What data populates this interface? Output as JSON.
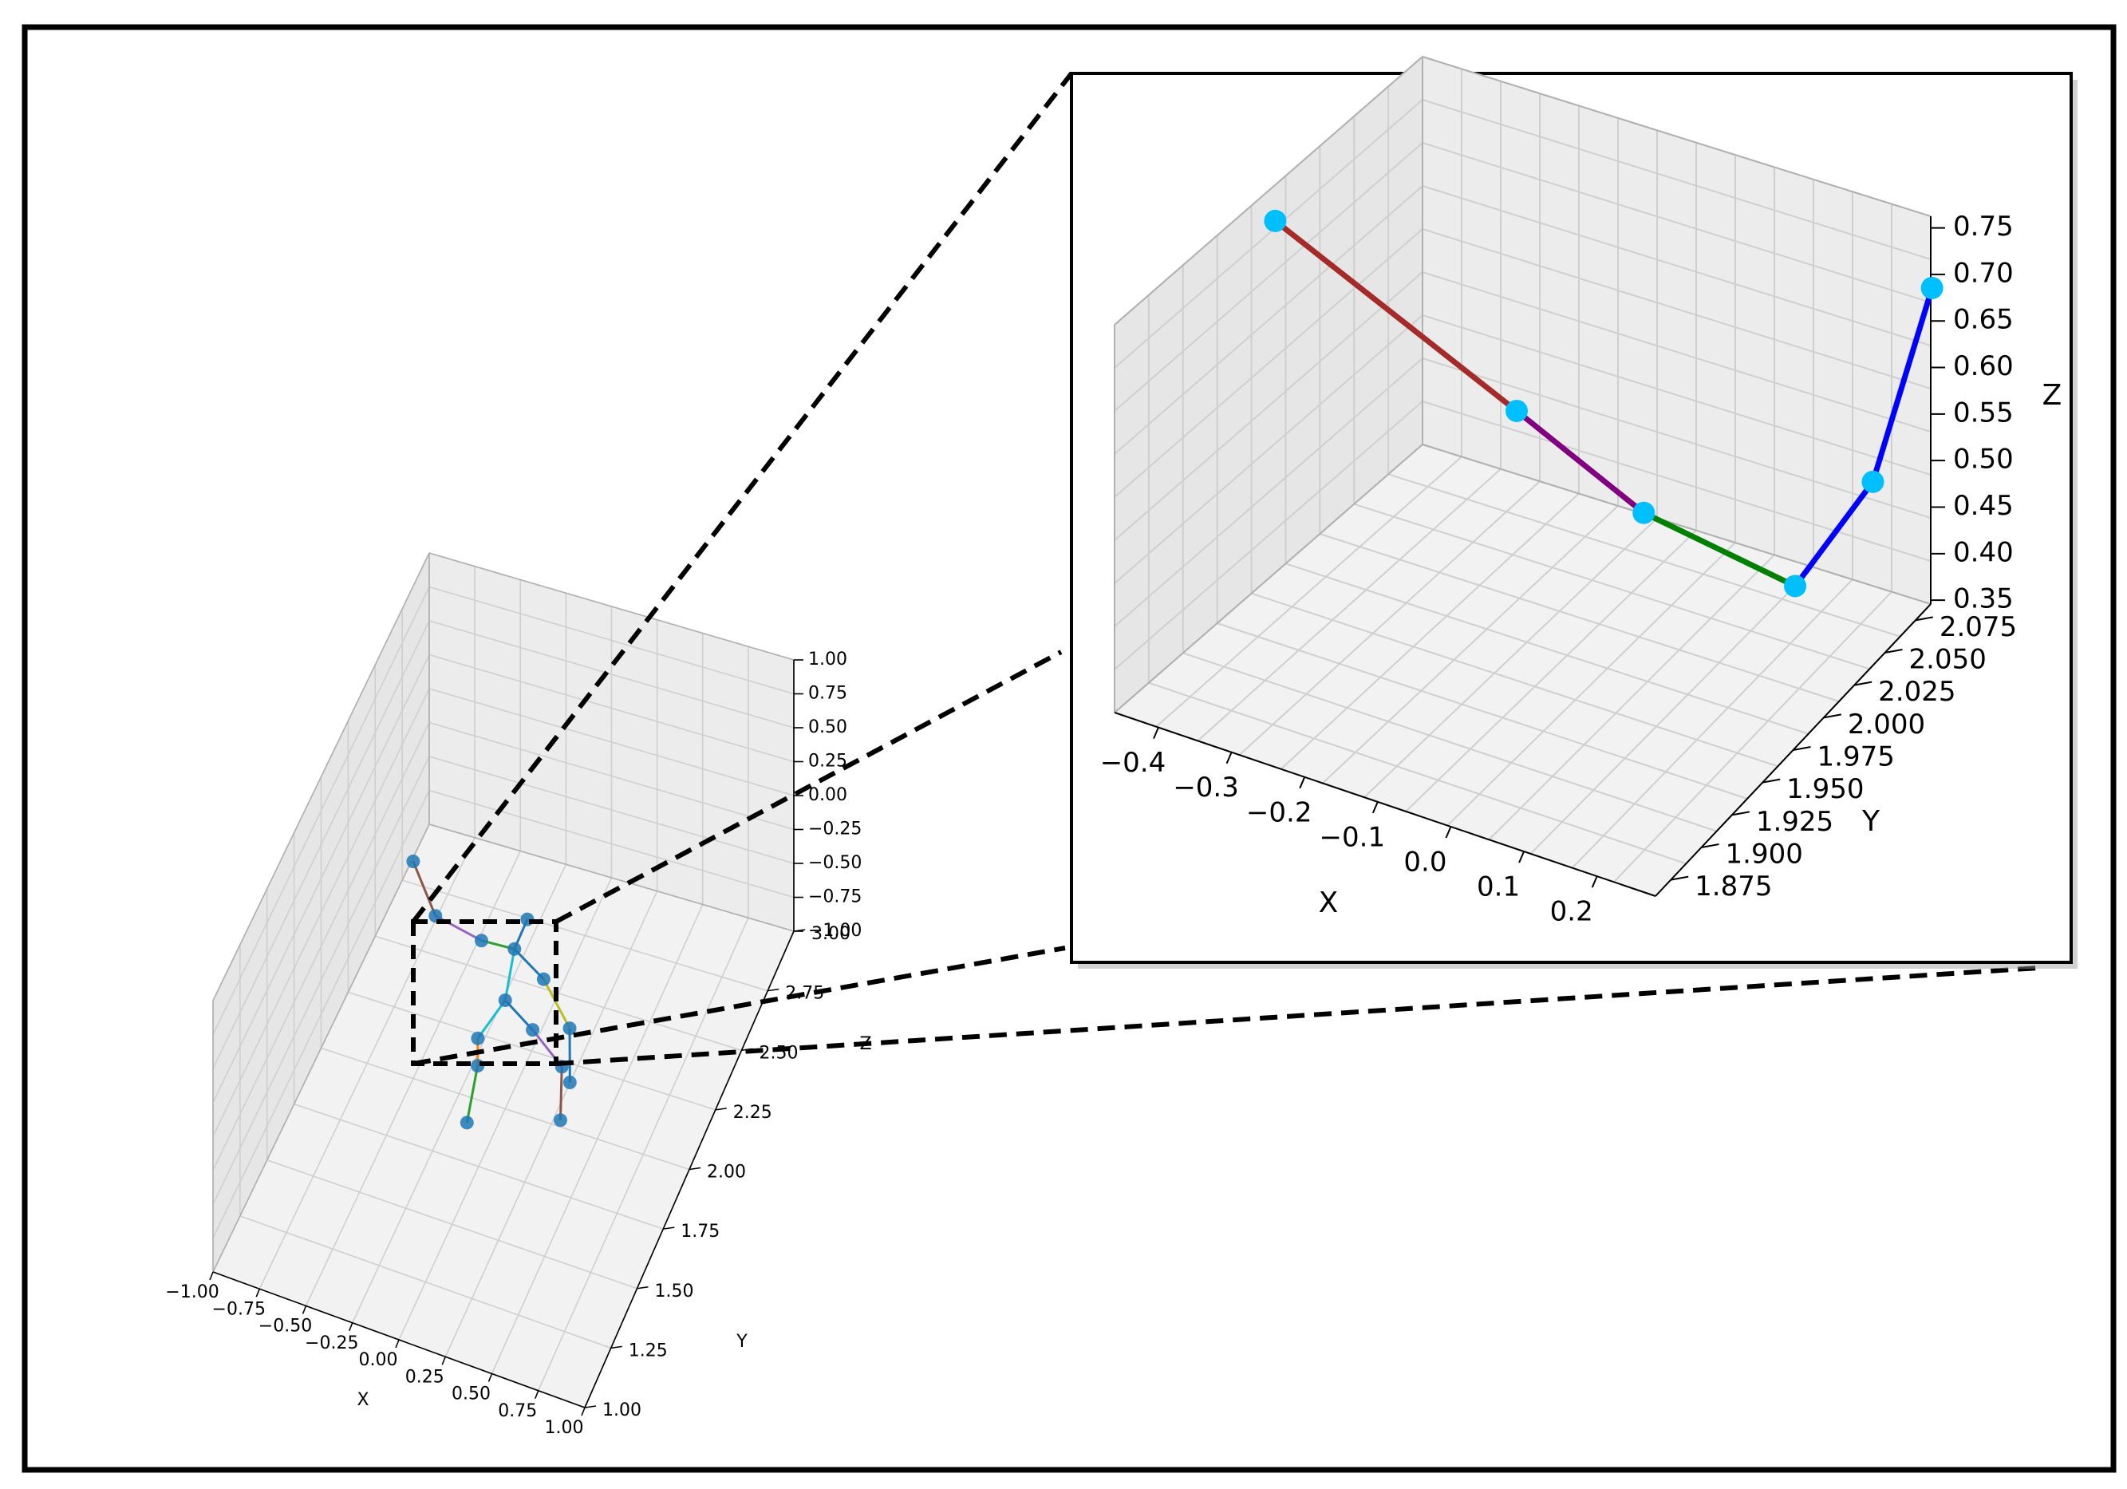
{
  "chart_data": [
    {
      "id": "main",
      "type": "scatter3d",
      "title": "",
      "axes": {
        "x": {
          "label": "X",
          "range": [
            -1.0,
            1.0
          ],
          "ticks": [
            "−1.00",
            "−0.75",
            "−0.50",
            "−0.25",
            "0.00",
            "0.25",
            "0.50",
            "0.75",
            "1.00"
          ]
        },
        "y": {
          "label": "Y",
          "range": [
            1.0,
            3.0
          ],
          "ticks": [
            "1.00",
            "1.25",
            "1.50",
            "1.75",
            "2.00",
            "2.25",
            "2.50",
            "2.75",
            "3.00"
          ]
        },
        "z": {
          "label": "Z",
          "range": [
            -1.0,
            1.0
          ],
          "ticks": [
            "−1.00",
            "−0.75",
            "−0.50",
            "−0.25",
            "0.00",
            "0.25",
            "0.50",
            "0.75",
            "1.00"
          ]
        }
      },
      "grid": true,
      "joints": [
        {
          "x": 0.0,
          "y": 2.0,
          "z": -0.2
        },
        {
          "x": 0.12,
          "y": 2.05,
          "z": -0.45
        },
        {
          "x": 0.25,
          "y": 2.1,
          "z": -0.75
        },
        {
          "x": 0.3,
          "y": 2.0,
          "z": -0.95
        },
        {
          "x": -0.12,
          "y": 1.95,
          "z": -0.45
        },
        {
          "x": -0.15,
          "y": 2.0,
          "z": -0.75
        },
        {
          "x": -0.15,
          "y": 1.9,
          "z": -1.0
        },
        {
          "x": 0.05,
          "y": 2.0,
          "z": 0.2
        },
        {
          "x": 0.12,
          "y": 2.0,
          "z": 0.45
        },
        {
          "x": 0.18,
          "y": 2.05,
          "z": -0.05
        },
        {
          "x": 0.35,
          "y": 2.0,
          "z": -0.25
        },
        {
          "x": 0.38,
          "y": 1.95,
          "z": -0.55
        },
        {
          "x": -0.1,
          "y": 1.95,
          "z": 0.28
        },
        {
          "x": -0.35,
          "y": 1.95,
          "z": 0.35
        },
        {
          "x": -0.5,
          "y": 2.0,
          "z": 0.6
        }
      ],
      "bones": [
        {
          "from": 0,
          "to": 1,
          "color": "#1f77b4"
        },
        {
          "from": 1,
          "to": 2,
          "color": "#9467bd"
        },
        {
          "from": 2,
          "to": 3,
          "color": "#8c564b"
        },
        {
          "from": 0,
          "to": 4,
          "color": "#17becf"
        },
        {
          "from": 4,
          "to": 5,
          "color": "#ff7f0e"
        },
        {
          "from": 5,
          "to": 6,
          "color": "#2ca02c"
        },
        {
          "from": 0,
          "to": 7,
          "color": "#17becf"
        },
        {
          "from": 7,
          "to": 8,
          "color": "#1f77b4"
        },
        {
          "from": 7,
          "to": 9,
          "color": "#1f77b4"
        },
        {
          "from": 9,
          "to": 10,
          "color": "#bcbd22"
        },
        {
          "from": 10,
          "to": 11,
          "color": "#1f77b4"
        },
        {
          "from": 7,
          "to": 12,
          "color": "#2ca02c"
        },
        {
          "from": 12,
          "to": 13,
          "color": "#9467bd"
        },
        {
          "from": 13,
          "to": 14,
          "color": "#8c564b"
        }
      ],
      "zoom_region": {
        "x": [
          -0.5,
          0.2
        ],
        "y": [
          1.875,
          2.075
        ],
        "z": [
          0.0,
          1.0
        ]
      }
    },
    {
      "id": "inset",
      "type": "line3d",
      "title": "",
      "axes": {
        "x": {
          "label": "X",
          "range": [
            -0.45,
            0.25
          ],
          "ticks": [
            "−0.4",
            "−0.3",
            "−0.2",
            "−0.1",
            "0.0",
            "0.1",
            "0.2"
          ]
        },
        "y": {
          "label": "Y",
          "range": [
            1.86,
            2.09
          ],
          "ticks": [
            "1.875",
            "1.900",
            "1.925",
            "1.950",
            "1.975",
            "2.000",
            "2.025",
            "2.050",
            "2.075"
          ]
        },
        "z": {
          "label": "Z",
          "range": [
            0.35,
            0.78
          ],
          "ticks": [
            "0.35",
            "0.40",
            "0.45",
            "0.50",
            "0.55",
            "0.60",
            "0.65",
            "0.70",
            "0.75"
          ]
        }
      },
      "grid": true,
      "point_color": "#00bfff",
      "points": [
        {
          "x": -0.45,
          "y": 1.98,
          "z": 0.74
        },
        {
          "x": -0.24,
          "y": 2.045,
          "z": 0.5
        },
        {
          "x": -0.05,
          "y": 2.035,
          "z": 0.45
        },
        {
          "x": 0.18,
          "y": 2.02,
          "z": 0.45
        },
        {
          "x": 0.22,
          "y": 2.06,
          "z": 0.52
        },
        {
          "x": 0.26,
          "y": 2.085,
          "z": 0.71
        }
      ],
      "segments": [
        {
          "from": 0,
          "to": 1,
          "color": "#a52a2a"
        },
        {
          "from": 1,
          "to": 2,
          "color": "#800080"
        },
        {
          "from": 2,
          "to": 3,
          "color": "#008000"
        },
        {
          "from": 3,
          "to": 4,
          "color": "#0000ff"
        },
        {
          "from": 4,
          "to": 5,
          "color": "#0000ff"
        }
      ]
    }
  ]
}
